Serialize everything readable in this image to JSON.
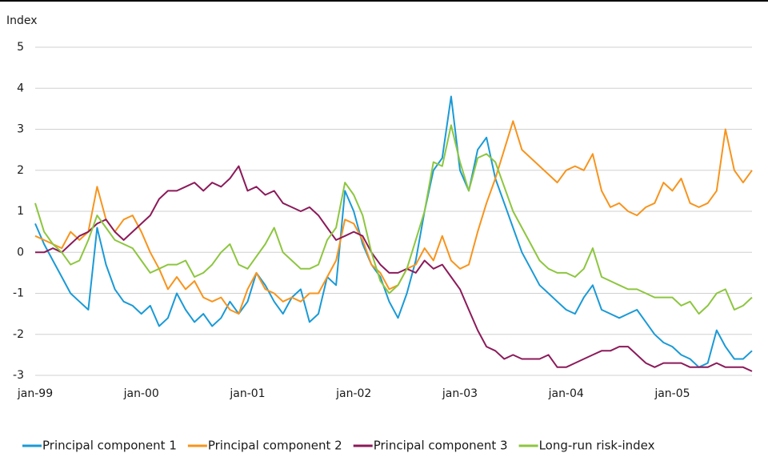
{
  "chart_data": {
    "type": "line",
    "y_label": "Index",
    "categories": [
      "jan-99",
      null,
      null,
      null,
      null,
      null,
      null,
      null,
      null,
      null,
      null,
      null,
      "jan-00",
      null,
      null,
      null,
      null,
      null,
      null,
      null,
      null,
      null,
      null,
      null,
      "jan-01",
      null,
      null,
      null,
      null,
      null,
      null,
      null,
      null,
      null,
      null,
      null,
      "jan-02",
      null,
      null,
      null,
      null,
      null,
      null,
      null,
      null,
      null,
      null,
      null,
      "jan-03",
      null,
      null,
      null,
      null,
      null,
      null,
      null,
      null,
      null,
      null,
      null,
      "jan-04",
      null,
      null,
      null,
      null,
      null,
      null,
      null,
      null,
      null,
      null,
      null,
      "jan-05",
      null,
      null,
      null,
      null,
      null,
      null,
      null,
      null,
      null
    ],
    "series": [
      {
        "name": "Principal component 1",
        "color": "#1a9ad6",
        "values": [
          0.7,
          0.2,
          -0.2,
          -0.6,
          -1.0,
          -1.2,
          -1.4,
          0.6,
          -0.3,
          -0.9,
          -1.2,
          -1.3,
          -1.5,
          -1.3,
          -1.8,
          -1.6,
          -1.0,
          -1.4,
          -1.7,
          -1.5,
          -1.8,
          -1.6,
          -1.2,
          -1.5,
          -1.2,
          -0.5,
          -0.8,
          -1.2,
          -1.5,
          -1.1,
          -0.9,
          -1.7,
          -1.5,
          -0.6,
          -0.8,
          1.5,
          1.0,
          0.2,
          -0.3,
          -0.6,
          -1.2,
          -1.6,
          -1.0,
          -0.2,
          1.0,
          2.0,
          2.3,
          3.8,
          2.0,
          1.5,
          2.5,
          2.8,
          1.8,
          1.2,
          0.6,
          0.0,
          -0.4,
          -0.8,
          -1.0,
          -1.2,
          -1.4,
          -1.5,
          -1.1,
          -0.8,
          -1.4,
          -1.5,
          -1.6,
          -1.5,
          -1.4,
          -1.7,
          -2.0,
          -2.2,
          -2.3,
          -2.5,
          -2.6,
          -2.8,
          -2.7,
          -1.9,
          -2.3,
          -2.6,
          -2.6,
          -2.4
        ]
      },
      {
        "name": "Principal component 2",
        "color": "#f7941d",
        "values": [
          0.4,
          0.3,
          0.2,
          0.1,
          0.5,
          0.3,
          0.5,
          1.6,
          0.8,
          0.5,
          0.8,
          0.9,
          0.5,
          0.0,
          -0.4,
          -0.9,
          -0.6,
          -0.9,
          -0.7,
          -1.1,
          -1.2,
          -1.1,
          -1.4,
          -1.5,
          -0.9,
          -0.5,
          -0.9,
          -1.0,
          -1.2,
          -1.1,
          -1.2,
          -1.0,
          -1.0,
          -0.6,
          -0.2,
          0.8,
          0.7,
          0.3,
          -0.3,
          -0.5,
          -0.9,
          -0.8,
          -0.4,
          -0.3,
          0.1,
          -0.2,
          0.4,
          -0.2,
          -0.4,
          -0.3,
          0.5,
          1.2,
          1.8,
          2.5,
          3.2,
          2.5,
          2.3,
          2.1,
          1.9,
          1.7,
          2.0,
          2.1,
          2.0,
          2.4,
          1.5,
          1.1,
          1.2,
          1.0,
          0.9,
          1.1,
          1.2,
          1.7,
          1.5,
          1.8,
          1.2,
          1.1,
          1.2,
          1.5,
          3.0,
          2.0,
          1.7,
          2.0
        ]
      },
      {
        "name": "Principal component 3",
        "color": "#8b1a5a",
        "values": [
          0.0,
          0.0,
          0.1,
          0.0,
          0.2,
          0.4,
          0.5,
          0.7,
          0.8,
          0.5,
          0.3,
          0.5,
          0.7,
          0.9,
          1.3,
          1.5,
          1.5,
          1.6,
          1.7,
          1.5,
          1.7,
          1.6,
          1.8,
          2.1,
          1.5,
          1.6,
          1.4,
          1.5,
          1.2,
          1.1,
          1.0,
          1.1,
          0.9,
          0.6,
          0.3,
          0.4,
          0.5,
          0.4,
          0.0,
          -0.3,
          -0.5,
          -0.5,
          -0.4,
          -0.5,
          -0.2,
          -0.4,
          -0.3,
          -0.6,
          -0.9,
          -1.4,
          -1.9,
          -2.3,
          -2.4,
          -2.6,
          -2.5,
          -2.6,
          -2.6,
          -2.6,
          -2.5,
          -2.8,
          -2.8,
          -2.7,
          -2.6,
          -2.5,
          -2.4,
          -2.4,
          -2.3,
          -2.3,
          -2.5,
          -2.7,
          -2.8,
          -2.7,
          -2.7,
          -2.7,
          -2.8,
          -2.8,
          -2.8,
          -2.7,
          -2.8,
          -2.8,
          -2.8,
          -2.9
        ]
      },
      {
        "name": "Long-run risk-index",
        "color": "#8dc63f",
        "values": [
          1.2,
          0.5,
          0.2,
          0.0,
          -0.3,
          -0.2,
          0.3,
          0.9,
          0.6,
          0.3,
          0.2,
          0.1,
          -0.2,
          -0.5,
          -0.4,
          -0.3,
          -0.3,
          -0.2,
          -0.6,
          -0.5,
          -0.3,
          0.0,
          0.2,
          -0.3,
          -0.4,
          -0.1,
          0.2,
          0.6,
          0.0,
          -0.2,
          -0.4,
          -0.4,
          -0.3,
          0.3,
          0.6,
          1.7,
          1.4,
          0.9,
          0.0,
          -0.7,
          -1.0,
          -0.8,
          -0.4,
          0.3,
          1.0,
          2.2,
          2.1,
          3.1,
          2.2,
          1.5,
          2.3,
          2.4,
          2.2,
          1.6,
          1.0,
          0.6,
          0.2,
          -0.2,
          -0.4,
          -0.5,
          -0.5,
          -0.6,
          -0.4,
          0.1,
          -0.6,
          -0.7,
          -0.8,
          -0.9,
          -0.9,
          -1.0,
          -1.1,
          -1.1,
          -1.1,
          -1.3,
          -1.2,
          -1.5,
          -1.3,
          -1.0,
          -0.9,
          -1.4,
          -1.3,
          -1.1
        ]
      }
    ],
    "ylim": [
      -3,
      5
    ],
    "yticks": [
      5,
      4,
      3,
      2,
      1,
      0,
      -1,
      -2,
      -3
    ],
    "grid": true,
    "legend": "bottom"
  }
}
